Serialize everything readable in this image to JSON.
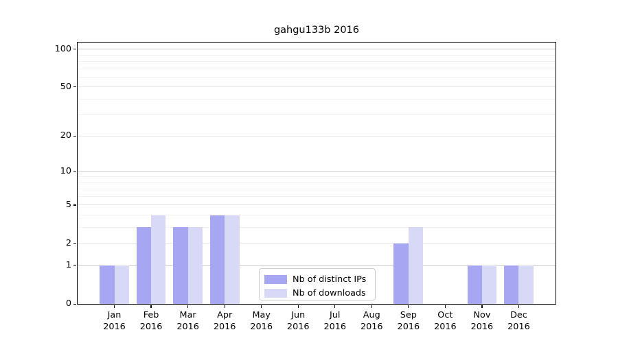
{
  "figure": {
    "background": "#ffffff"
  },
  "chart_data": {
    "type": "bar",
    "title": "gahgu133b 2016",
    "scale": "log1p",
    "grid": "horizontal",
    "categories": [
      "Jan",
      "Feb",
      "Mar",
      "Apr",
      "May",
      "Jun",
      "Jul",
      "Aug",
      "Sep",
      "Oct",
      "Nov",
      "Dec"
    ],
    "category_sub": "2016",
    "series": [
      {
        "name": "Nb of distinct IPs",
        "color": "#a6a6f2",
        "values": [
          1,
          3,
          3,
          4,
          0,
          0,
          0,
          0,
          2,
          0,
          1,
          1
        ]
      },
      {
        "name": "Nb of downloads",
        "color": "#d8d8f7",
        "values": [
          1,
          4,
          3,
          4,
          0,
          0,
          0,
          0,
          3,
          0,
          1,
          1
        ]
      }
    ],
    "y_ticks": [
      0,
      1,
      2,
      5,
      10,
      20,
      50,
      100
    ],
    "gridlines": {
      "major": [
        1,
        10,
        100
      ],
      "labeled_minor": [
        2,
        5,
        20,
        50
      ],
      "minor": [
        3,
        4,
        6,
        7,
        8,
        9,
        30,
        40,
        60,
        70,
        80,
        90
      ]
    },
    "ylim": [
      0,
      113
    ],
    "legend": {
      "position": "lower-center"
    }
  },
  "colors": {
    "grid_major": "#c9c9c9",
    "grid_labeled_minor": "#e6e6e6",
    "grid_minor": "#f1f1f1",
    "spine": "#000000",
    "text": "#000000",
    "legend_border": "#cccccc"
  }
}
